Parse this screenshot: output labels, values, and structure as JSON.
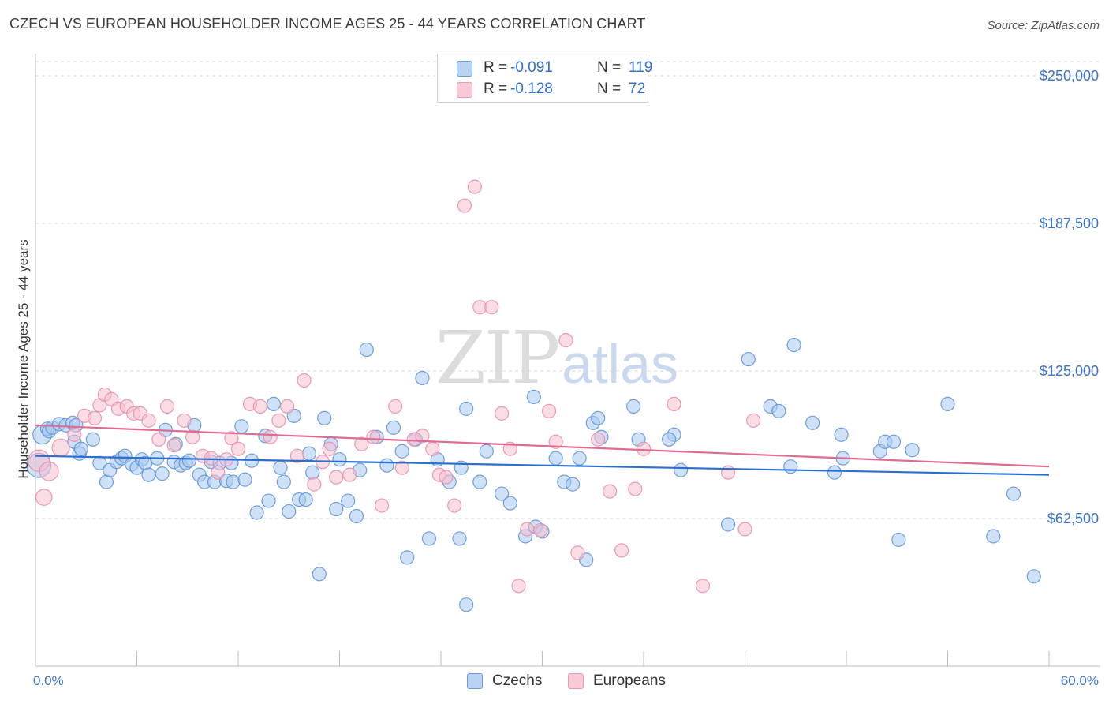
{
  "title": "CZECH VS EUROPEAN HOUSEHOLDER INCOME AGES 25 - 44 YEARS CORRELATION CHART",
  "source": "Source: ZipAtlas.com",
  "watermark": {
    "zip": "ZIP",
    "atlas": "atlas"
  },
  "legend": {
    "czechs": {
      "r_label": "R =",
      "r_value": "-0.091",
      "n_label": "N =",
      "n_value": "119"
    },
    "europeans": {
      "r_label": "R =",
      "r_value": "-0.128",
      "n_label": "N =",
      "n_value": "72"
    }
  },
  "bottom_legend": {
    "czechs": "Czechs",
    "europeans": "Europeans"
  },
  "colors": {
    "czechs_fill": "#a8c8f0",
    "czechs_stroke": "#5b8fd6",
    "czechs_line": "#2a6fd0",
    "europeans_fill": "#f6bfd0",
    "europeans_stroke": "#e88aa8",
    "europeans_line": "#e06a92",
    "axis_text": "#3b74c6",
    "grid": "#d9d9d9"
  },
  "chart_data": {
    "type": "scatter",
    "title": "CZECH VS EUROPEAN HOUSEHOLDER INCOME AGES 25 - 44 YEARS CORRELATION CHART",
    "xlabel": "",
    "ylabel": "Householder Income Ages 25 - 44 years",
    "xlim": [
      0,
      60
    ],
    "ylim": [
      0,
      250000
    ],
    "x_tick_labels": [
      "0.0%",
      "60.0%"
    ],
    "y_ticks": [
      62500,
      125000,
      187500,
      250000
    ],
    "y_tick_labels": [
      "$62,500",
      "$125,000",
      "$187,500",
      "$250,000"
    ],
    "grid": true,
    "legend_position": "top-center",
    "series": [
      {
        "name": "Czechs",
        "trend": {
          "x": [
            0,
            60
          ],
          "y": [
            89000,
            81000
          ]
        },
        "points": [
          [
            0.2,
            85000,
            1.8
          ],
          [
            0.4,
            98000,
            1.4
          ],
          [
            0.7,
            100500,
            1
          ],
          [
            0.8,
            99500,
            1
          ],
          [
            1.0,
            101000,
            1
          ],
          [
            1.4,
            102500,
            1
          ],
          [
            1.8,
            102000,
            1
          ],
          [
            2.2,
            103000,
            1
          ],
          [
            2.4,
            102000,
            1
          ],
          [
            2.3,
            95000,
            1
          ],
          [
            2.6,
            90000,
            1
          ],
          [
            2.7,
            92000,
            1
          ],
          [
            3.4,
            96000,
            1
          ],
          [
            3.8,
            86000,
            1
          ],
          [
            4.2,
            78000,
            1
          ],
          [
            4.4,
            83000,
            1
          ],
          [
            4.8,
            86500,
            1
          ],
          [
            5.1,
            88000,
            1
          ],
          [
            5.3,
            89000,
            1
          ],
          [
            5.7,
            85500,
            1
          ],
          [
            6.0,
            84000,
            1
          ],
          [
            6.3,
            87500,
            1
          ],
          [
            6.5,
            86000,
            1
          ],
          [
            6.7,
            81000,
            1
          ],
          [
            7.2,
            88000,
            1
          ],
          [
            7.5,
            81500,
            1
          ],
          [
            7.7,
            100000,
            1
          ],
          [
            8.2,
            86500,
            1
          ],
          [
            8.3,
            94000,
            1
          ],
          [
            8.6,
            85000,
            1
          ],
          [
            8.9,
            86000,
            1
          ],
          [
            9.1,
            87000,
            1
          ],
          [
            9.4,
            102000,
            1
          ],
          [
            9.7,
            81000,
            1
          ],
          [
            10.0,
            78000,
            1
          ],
          [
            10.4,
            86500,
            1
          ],
          [
            10.6,
            78000,
            1
          ],
          [
            10.9,
            86000,
            1
          ],
          [
            11.3,
            78500,
            1
          ],
          [
            11.6,
            86000,
            1
          ],
          [
            11.7,
            78000,
            1
          ],
          [
            12.2,
            101500,
            1
          ],
          [
            12.4,
            79000,
            1
          ],
          [
            12.8,
            87000,
            1
          ],
          [
            13.1,
            65000,
            1
          ],
          [
            13.6,
            97500,
            1
          ],
          [
            13.8,
            70000,
            1
          ],
          [
            14.1,
            111000,
            1
          ],
          [
            14.5,
            84000,
            1
          ],
          [
            14.7,
            78000,
            1
          ],
          [
            15.0,
            65500,
            1
          ],
          [
            15.3,
            106000,
            1
          ],
          [
            15.6,
            70500,
            1
          ],
          [
            16.0,
            70500,
            1
          ],
          [
            16.2,
            90000,
            1
          ],
          [
            16.4,
            82000,
            1
          ],
          [
            16.8,
            39000,
            1
          ],
          [
            17.1,
            105000,
            1
          ],
          [
            17.5,
            94000,
            1
          ],
          [
            17.8,
            66500,
            1
          ],
          [
            18.0,
            87500,
            1
          ],
          [
            18.5,
            70000,
            1
          ],
          [
            19.0,
            63500,
            1
          ],
          [
            19.2,
            83000,
            1
          ],
          [
            19.6,
            134000,
            1
          ],
          [
            20.2,
            97000,
            1
          ],
          [
            20.8,
            85000,
            1
          ],
          [
            21.2,
            101000,
            1
          ],
          [
            21.7,
            91000,
            1
          ],
          [
            22.0,
            46000,
            1
          ],
          [
            22.5,
            96000,
            1
          ],
          [
            22.9,
            122000,
            1
          ],
          [
            23.3,
            54000,
            1
          ],
          [
            23.8,
            87500,
            1
          ],
          [
            24.5,
            78000,
            1
          ],
          [
            25.1,
            54000,
            1
          ],
          [
            25.2,
            84000,
            1
          ],
          [
            25.5,
            109000,
            1
          ],
          [
            25.5,
            26000,
            1
          ],
          [
            26.3,
            78000,
            1
          ],
          [
            26.7,
            91000,
            1
          ],
          [
            27.6,
            73000,
            1
          ],
          [
            28.1,
            69000,
            1
          ],
          [
            29.0,
            55000,
            1
          ],
          [
            29.5,
            114000,
            1
          ],
          [
            29.6,
            59000,
            1
          ],
          [
            30.0,
            57000,
            1
          ],
          [
            30.8,
            88000,
            1
          ],
          [
            31.3,
            78000,
            1
          ],
          [
            31.8,
            77000,
            1
          ],
          [
            32.2,
            88000,
            1
          ],
          [
            32.6,
            45000,
            1
          ],
          [
            33.0,
            103000,
            1
          ],
          [
            33.3,
            105000,
            1
          ],
          [
            33.5,
            97000,
            1
          ],
          [
            35.4,
            110000,
            1
          ],
          [
            35.7,
            96000,
            1
          ],
          [
            37.8,
            98000,
            1
          ],
          [
            37.5,
            96000,
            1
          ],
          [
            38.2,
            83000,
            1
          ],
          [
            41.0,
            60000,
            1
          ],
          [
            42.2,
            130000,
            1
          ],
          [
            43.5,
            110000,
            1
          ],
          [
            44.0,
            108000,
            1
          ],
          [
            44.7,
            84500,
            1
          ],
          [
            44.9,
            136000,
            1
          ],
          [
            46.0,
            103000,
            1
          ],
          [
            47.3,
            82000,
            1
          ],
          [
            47.7,
            98000,
            1
          ],
          [
            47.8,
            88000,
            1
          ],
          [
            50.0,
            91000,
            1
          ],
          [
            50.3,
            95000,
            1
          ],
          [
            50.8,
            95000,
            1
          ],
          [
            51.1,
            53500,
            1
          ],
          [
            51.9,
            91500,
            1
          ],
          [
            56.7,
            55000,
            1
          ],
          [
            57.9,
            73000,
            1
          ],
          [
            59.1,
            38000,
            1
          ],
          [
            54.0,
            111000,
            1
          ]
        ]
      },
      {
        "name": "Europeans",
        "trend": {
          "x": [
            0,
            60
          ],
          "y": [
            102000,
            84500
          ]
        },
        "points": [
          [
            0.2,
            87000,
            1.6
          ],
          [
            0.5,
            71500,
            1.2
          ],
          [
            0.8,
            82500,
            1.4
          ],
          [
            1.5,
            92500,
            1.3
          ],
          [
            2.3,
            98000,
            1
          ],
          [
            2.9,
            106000,
            1
          ],
          [
            3.5,
            105000,
            1
          ],
          [
            3.8,
            110500,
            1
          ],
          [
            4.1,
            115000,
            1
          ],
          [
            4.5,
            113000,
            1
          ],
          [
            4.9,
            109000,
            1
          ],
          [
            5.4,
            110000,
            1
          ],
          [
            5.8,
            107000,
            1
          ],
          [
            6.2,
            107000,
            1
          ],
          [
            6.7,
            104000,
            1
          ],
          [
            7.3,
            96000,
            1
          ],
          [
            7.8,
            110000,
            1
          ],
          [
            8.2,
            93500,
            1
          ],
          [
            8.8,
            104000,
            1
          ],
          [
            9.3,
            97000,
            1
          ],
          [
            9.9,
            89000,
            1
          ],
          [
            10.4,
            88000,
            1
          ],
          [
            10.8,
            82000,
            1
          ],
          [
            11.3,
            87500,
            1
          ],
          [
            11.6,
            96500,
            1
          ],
          [
            12.0,
            92000,
            1
          ],
          [
            12.7,
            111000,
            1
          ],
          [
            13.3,
            110000,
            1
          ],
          [
            13.9,
            97000,
            1
          ],
          [
            14.4,
            104000,
            1
          ],
          [
            14.9,
            110000,
            1
          ],
          [
            15.5,
            89000,
            1
          ],
          [
            15.9,
            121000,
            1
          ],
          [
            16.5,
            77000,
            1
          ],
          [
            17.0,
            86500,
            1
          ],
          [
            17.4,
            92000,
            1
          ],
          [
            17.8,
            80000,
            1
          ],
          [
            18.6,
            81000,
            1
          ],
          [
            19.3,
            94000,
            1
          ],
          [
            20.0,
            97000,
            1
          ],
          [
            20.5,
            68000,
            1
          ],
          [
            21.3,
            110000,
            1
          ],
          [
            21.7,
            84000,
            1
          ],
          [
            22.4,
            96000,
            1
          ],
          [
            22.9,
            97500,
            1
          ],
          [
            23.5,
            92000,
            1
          ],
          [
            23.9,
            81000,
            1
          ],
          [
            24.3,
            80000,
            1
          ],
          [
            24.8,
            68000,
            1
          ],
          [
            25.4,
            195000,
            1
          ],
          [
            26.0,
            203000,
            1
          ],
          [
            26.3,
            152000,
            1
          ],
          [
            27.0,
            152000,
            1
          ],
          [
            27.6,
            107000,
            1
          ],
          [
            28.1,
            92000,
            1
          ],
          [
            28.6,
            34000,
            1
          ],
          [
            29.1,
            58000,
            1
          ],
          [
            29.9,
            57500,
            1
          ],
          [
            30.4,
            108000,
            1
          ],
          [
            30.8,
            95000,
            1
          ],
          [
            31.4,
            138000,
            1
          ],
          [
            32.1,
            48000,
            1
          ],
          [
            33.3,
            96000,
            1
          ],
          [
            34.0,
            74000,
            1
          ],
          [
            34.7,
            49000,
            1
          ],
          [
            35.5,
            75000,
            1
          ],
          [
            36.0,
            92000,
            1
          ],
          [
            37.8,
            111000,
            1
          ],
          [
            39.5,
            34000,
            1
          ],
          [
            41.0,
            82000,
            1
          ],
          [
            42.0,
            58000,
            1
          ],
          [
            42.5,
            104000,
            1
          ]
        ]
      }
    ]
  }
}
